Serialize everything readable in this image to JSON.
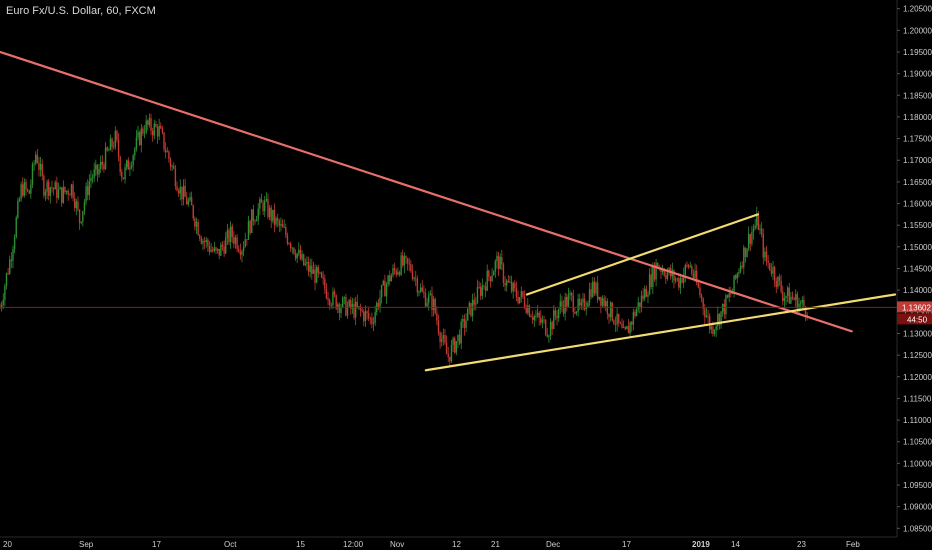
{
  "title": "Euro Fx/U.S. Dollar, 60, FXCM",
  "colors": {
    "background": "#000000",
    "candle_up": "#2f8f34",
    "candle_down": "#c43a32",
    "main_trendline": "#e8706a",
    "channel_lines": "#f2dc72",
    "price_line": "#8b1c1c",
    "price_tag": "#c23a34",
    "timer_tag": "#7a1010",
    "axis_text": "#cfcfcf"
  },
  "price_axis": {
    "ticks": [
      "1.20500",
      "1.20000",
      "1.19500",
      "1.19000",
      "1.18500",
      "1.18000",
      "1.17500",
      "1.17000",
      "1.16500",
      "1.16000",
      "1.15500",
      "1.15000",
      "1.14500",
      "1.14000",
      "1.13500",
      "1.13000",
      "1.12500",
      "1.12000",
      "1.11500",
      "1.11000",
      "1.10500",
      "1.10000",
      "1.09500",
      "1.09000",
      "1.08500"
    ],
    "current_price": "1.13602",
    "countdown": "44:50"
  },
  "time_axis": {
    "labels": [
      {
        "text": "20",
        "bold": false
      },
      {
        "text": "Sep",
        "bold": false
      },
      {
        "text": "17",
        "bold": false
      },
      {
        "text": "Oct",
        "bold": false
      },
      {
        "text": "15",
        "bold": false
      },
      {
        "text": "12:00",
        "bold": false
      },
      {
        "text": "Nov",
        "bold": false
      },
      {
        "text": "12",
        "bold": false
      },
      {
        "text": "21",
        "bold": false
      },
      {
        "text": "Dec",
        "bold": false
      },
      {
        "text": "17",
        "bold": false
      },
      {
        "text": "2019",
        "bold": true
      },
      {
        "text": "14",
        "bold": false
      },
      {
        "text": "23",
        "bold": false
      },
      {
        "text": "Feb",
        "bold": false
      }
    ]
  },
  "chart_data": {
    "type": "candlestick",
    "symbol": "Euro Fx/U.S. Dollar",
    "interval": "60",
    "source": "FXCM",
    "ylim": [
      1.083,
      1.207
    ],
    "current_price": 1.13602,
    "price_path": [
      [
        0,
        1.136
      ],
      [
        0.03,
        1.148
      ],
      [
        0.06,
        1.164
      ],
      [
        0.08,
        1.162
      ],
      [
        0.1,
        1.172
      ],
      [
        0.12,
        1.164
      ],
      [
        0.14,
        1.164
      ],
      [
        0.17,
        1.162
      ],
      [
        0.2,
        1.164
      ],
      [
        0.22,
        1.156
      ],
      [
        0.25,
        1.166
      ],
      [
        0.27,
        1.167
      ],
      [
        0.3,
        1.172
      ],
      [
        0.32,
        1.175
      ],
      [
        0.34,
        1.166
      ],
      [
        0.36,
        1.17
      ],
      [
        0.4,
        1.178
      ],
      [
        0.44,
        1.177
      ],
      [
        0.47,
        1.17
      ],
      [
        0.5,
        1.163
      ],
      [
        0.53,
        1.159
      ],
      [
        0.56,
        1.152
      ],
      [
        0.6,
        1.148
      ],
      [
        0.64,
        1.153
      ],
      [
        0.67,
        1.15
      ],
      [
        0.7,
        1.157
      ],
      [
        0.73,
        1.16
      ],
      [
        0.76,
        1.156
      ],
      [
        0.8,
        1.152
      ],
      [
        0.84,
        1.146
      ],
      [
        0.88,
        1.143
      ],
      [
        0.92,
        1.138
      ],
      [
        0.96,
        1.136
      ],
      [
        1.0,
        1.135
      ],
      [
        1.03,
        1.133
      ],
      [
        1.05,
        1.138
      ],
      [
        1.08,
        1.143
      ],
      [
        1.11,
        1.146
      ],
      [
        1.14,
        1.145
      ],
      [
        1.17,
        1.139
      ],
      [
        1.2,
        1.137
      ],
      [
        1.22,
        1.13
      ],
      [
        1.24,
        1.1245
      ],
      [
        1.27,
        1.129
      ],
      [
        1.3,
        1.135
      ],
      [
        1.33,
        1.14
      ],
      [
        1.36,
        1.144
      ],
      [
        1.38,
        1.147
      ],
      [
        1.4,
        1.142
      ],
      [
        1.43,
        1.139
      ],
      [
        1.45,
        1.138
      ],
      [
        1.48,
        1.134
      ],
      [
        1.52,
        1.131
      ],
      [
        1.55,
        1.136
      ],
      [
        1.58,
        1.138
      ],
      [
        1.61,
        1.135
      ],
      [
        1.64,
        1.141
      ],
      [
        1.67,
        1.138
      ],
      [
        1.7,
        1.134
      ],
      [
        1.73,
        1.129
      ],
      [
        1.76,
        1.135
      ],
      [
        1.79,
        1.14
      ],
      [
        1.82,
        1.146
      ],
      [
        1.85,
        1.144
      ],
      [
        1.88,
        1.142
      ],
      [
        1.91,
        1.146
      ],
      [
        1.94,
        1.139
      ],
      [
        1.97,
        1.131
      ],
      [
        2.0,
        1.135
      ],
      [
        2.03,
        1.14
      ],
      [
        2.05,
        1.146
      ],
      [
        2.08,
        1.153
      ],
      [
        2.1,
        1.156
      ],
      [
        2.12,
        1.147
      ],
      [
        2.14,
        1.145
      ],
      [
        2.17,
        1.139
      ],
      [
        2.2,
        1.138
      ],
      [
        2.22,
        1.1365
      ],
      [
        2.24,
        1.136
      ]
    ],
    "annotations": [
      {
        "kind": "trendline",
        "name": "descending-resistance",
        "color": "#e8706a",
        "from": [
          0.0,
          1.195
        ],
        "to": [
          2.36,
          1.1305
        ]
      },
      {
        "kind": "trendline",
        "name": "ascending-support",
        "color": "#f2dc72",
        "from": [
          1.18,
          1.1215
        ],
        "to": [
          2.48,
          1.139
        ]
      },
      {
        "kind": "trendline",
        "name": "ascending-upper-channel",
        "color": "#f2dc72",
        "from": [
          1.46,
          1.139
        ],
        "to": [
          2.1,
          1.1575
        ]
      },
      {
        "kind": "horizontal",
        "name": "current-price-line",
        "color": "#8b1c1c",
        "price": 1.13602
      }
    ]
  }
}
